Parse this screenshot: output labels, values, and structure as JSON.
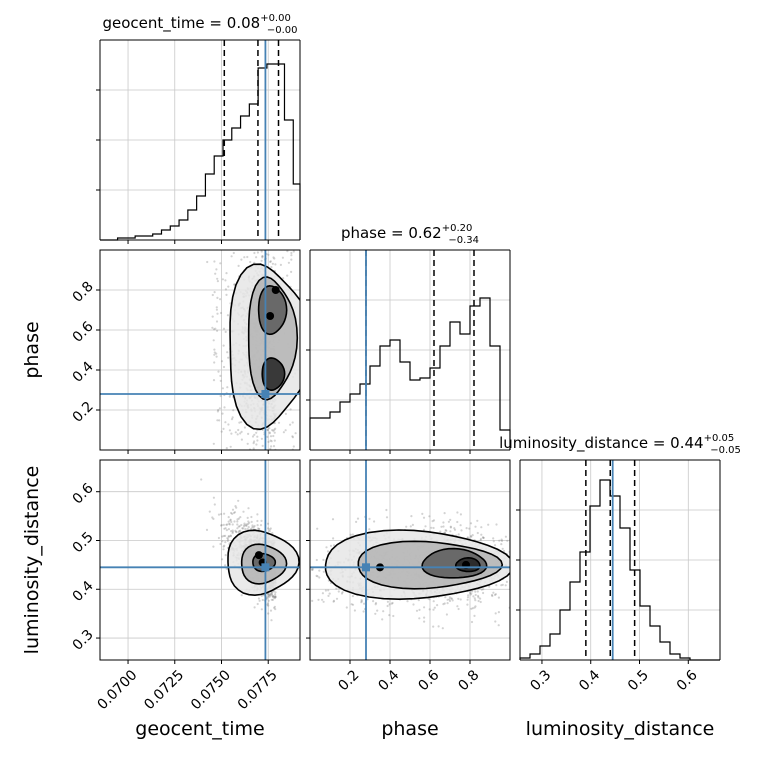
{
  "chart_data": {
    "type": "corner",
    "parameters": [
      {
        "name": "geocent_time",
        "title_prefix": "geocent_time = ",
        "median": "0.08",
        "plus": "+0.00",
        "minus": "−0.00",
        "range": [
          0.0685,
          0.0792
        ],
        "ticks": [
          0.07,
          0.0725,
          0.075,
          0.0775
        ],
        "tick_labels": [
          "0.0700",
          "0.0725",
          "0.0750",
          "0.0775"
        ],
        "quantiles": [
          0.07515,
          0.07695,
          0.07805
        ],
        "truth": 0.07735
      },
      {
        "name": "phase",
        "title_prefix": "phase = ",
        "median": "0.62",
        "plus": "+0.20",
        "minus": "−0.34",
        "range": [
          0.0,
          1.0
        ],
        "ticks": [
          0.2,
          0.4,
          0.6,
          0.8
        ],
        "tick_labels": [
          "0.2",
          "0.4",
          "0.6",
          "0.8"
        ],
        "quantiles": [
          0.28,
          0.62,
          0.82
        ],
        "truth": 0.28
      },
      {
        "name": "luminosity_distance",
        "title_prefix": "luminosity_distance = ",
        "median": "0.44",
        "plus": "+0.05",
        "minus": "−0.05",
        "range": [
          0.255,
          0.665
        ],
        "ticks": [
          0.3,
          0.4,
          0.5,
          0.6
        ],
        "tick_labels": [
          "0.3",
          "0.4",
          "0.5",
          "0.6"
        ],
        "quantiles": [
          0.39,
          0.44,
          0.49
        ],
        "truth": 0.445
      }
    ],
    "histograms": [
      {
        "parameter": "geocent_time",
        "bin_edges": [
          0.0685,
          0.06897,
          0.06944,
          0.06991,
          0.07038,
          0.07085,
          0.07132,
          0.07179,
          0.07226,
          0.07273,
          0.0732,
          0.07367,
          0.07414,
          0.07461,
          0.07508,
          0.07555,
          0.07602,
          0.07649,
          0.07696,
          0.07743,
          0.0779,
          0.07837,
          0.07884,
          0.0792
        ],
        "density": [
          0.0,
          0.0,
          0.01,
          0.01,
          0.02,
          0.02,
          0.03,
          0.05,
          0.07,
          0.1,
          0.15,
          0.22,
          0.33,
          0.42,
          0.5,
          0.56,
          0.62,
          0.68,
          0.86,
          0.88,
          0.88,
          0.6,
          0.28
        ]
      },
      {
        "parameter": "phase",
        "bin_edges": [
          0.0,
          0.05,
          0.1,
          0.15,
          0.2,
          0.25,
          0.3,
          0.35,
          0.4,
          0.45,
          0.5,
          0.55,
          0.6,
          0.65,
          0.7,
          0.75,
          0.8,
          0.85,
          0.9,
          0.95,
          1.0
        ],
        "density": [
          0.16,
          0.16,
          0.19,
          0.24,
          0.28,
          0.33,
          0.42,
          0.52,
          0.55,
          0.44,
          0.35,
          0.36,
          0.41,
          0.52,
          0.64,
          0.58,
          0.72,
          0.76,
          0.52,
          0.1
        ]
      },
      {
        "parameter": "luminosity_distance",
        "bin_edges": [
          0.255,
          0.2755,
          0.296,
          0.3165,
          0.337,
          0.3575,
          0.378,
          0.3985,
          0.419,
          0.4395,
          0.46,
          0.4805,
          0.501,
          0.5215,
          0.542,
          0.5625,
          0.583,
          0.6035,
          0.624,
          0.6445,
          0.665
        ],
        "density": [
          0.01,
          0.03,
          0.07,
          0.13,
          0.25,
          0.39,
          0.54,
          0.77,
          0.9,
          0.82,
          0.66,
          0.45,
          0.27,
          0.17,
          0.09,
          0.03,
          0.01,
          0.0,
          0.0,
          0.0
        ]
      }
    ],
    "pairs": [
      {
        "x": "geocent_time",
        "y": "phase",
        "truth": [
          0.07735,
          0.28
        ],
        "peaks": [
          [
            0.0776,
            0.67
          ],
          [
            0.0779,
            0.8
          ]
        ]
      },
      {
        "x": "geocent_time",
        "y": "luminosity_distance",
        "truth": [
          0.07735,
          0.445
        ],
        "peaks": [
          [
            0.0772,
            0.455
          ],
          [
            0.077,
            0.47
          ]
        ]
      },
      {
        "x": "phase",
        "y": "luminosity_distance",
        "truth": [
          0.28,
          0.445
        ],
        "peaks": [
          [
            0.78,
            0.45
          ],
          [
            0.35,
            0.445
          ]
        ]
      }
    ],
    "grid": true,
    "colors": {
      "truth": "#4682b4",
      "contour": "#000000",
      "hist": "#000000",
      "scatter": "#808080",
      "grid": "#c8c8c8"
    }
  }
}
